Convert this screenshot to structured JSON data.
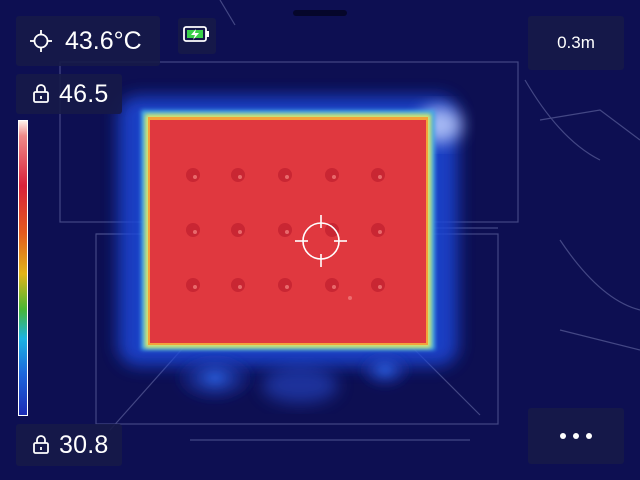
{
  "measurements": {
    "spot_temperature": "43.6°C",
    "max_temperature": "46.5",
    "min_temperature": "30.8",
    "distance": "0.3m"
  },
  "icons": {
    "spot": "crosshair-icon",
    "max_lock": "lock-icon",
    "min_lock": "lock-icon",
    "battery": "battery-charging-icon",
    "more": "more-dots-icon"
  },
  "colors": {
    "hot": "#e0383f",
    "cold_background": "#0d0f52",
    "panel": "#161a48",
    "battery_accent": "#3ad14a"
  },
  "palette_bar": {
    "top_label": "46.5",
    "bottom_label": "30.8"
  }
}
